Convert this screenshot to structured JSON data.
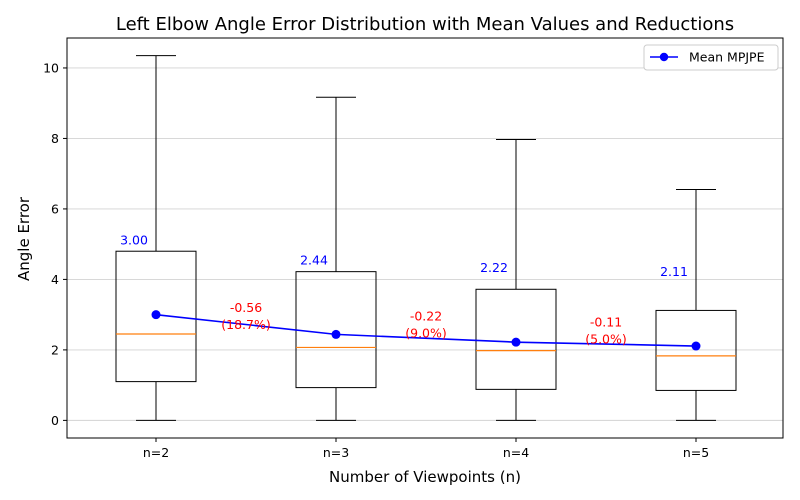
{
  "chart_data": {
    "type": "box",
    "title": "Left Elbow Angle Error Distribution with Mean Values and Reductions",
    "xlabel": "Number of Viewpoints (n)",
    "ylabel": "Angle Error",
    "ylim": [
      -0.5,
      10.85
    ],
    "yticks": [
      0,
      2,
      4,
      6,
      8,
      10
    ],
    "grid": "horizontal",
    "legend_position": "top-right",
    "categories": [
      "n=2",
      "n=3",
      "n=4",
      "n=5"
    ],
    "boxes": [
      {
        "whisker_low": 0.0,
        "q1": 1.1,
        "median": 2.45,
        "q3": 4.8,
        "whisker_high": 10.35
      },
      {
        "whisker_low": 0.0,
        "q1": 0.93,
        "median": 2.07,
        "q3": 4.22,
        "whisker_high": 9.17
      },
      {
        "whisker_low": 0.0,
        "q1": 0.88,
        "median": 1.98,
        "q3": 3.72,
        "whisker_high": 7.97
      },
      {
        "whisker_low": 0.0,
        "q1": 0.85,
        "median": 1.83,
        "q3": 3.12,
        "whisker_high": 6.55
      }
    ],
    "series": [
      {
        "name": "Mean MPJPE",
        "values": [
          3.0,
          2.44,
          2.22,
          2.11
        ],
        "labels": [
          "3.00",
          "2.44",
          "2.22",
          "2.11"
        ],
        "color": "#0000ff"
      }
    ],
    "reductions": [
      {
        "value": 2.56,
        "line1": "-0.56",
        "line2": "(18.7%)"
      },
      {
        "value": 2.33,
        "line1": "-0.22",
        "line2": "(9.0%)"
      },
      {
        "value": 2.16,
        "line1": "-0.11",
        "line2": "(5.0%)"
      }
    ],
    "colors": {
      "box": "#000000",
      "median": "#ff7f0e",
      "mean": "#0000ff",
      "reduction": "#ff0000",
      "grid": "#d3d3d3"
    }
  }
}
